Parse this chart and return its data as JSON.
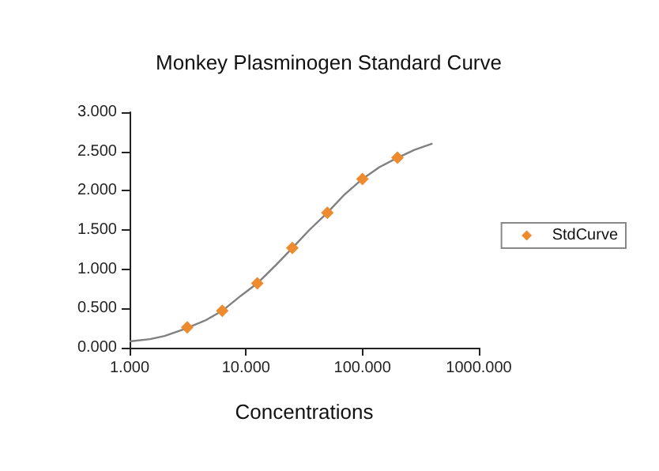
{
  "chart_data": {
    "type": "scatter",
    "title": "Monkey Plasminogen Standard Curve",
    "xlabel": "Concentrations",
    "log": "x",
    "grid": false,
    "legend": "right",
    "marker": "diamond",
    "xlim": [
      1,
      1000
    ],
    "xticks": [
      {
        "value": 1,
        "label": "1.000"
      },
      {
        "value": 10,
        "label": "10.000"
      },
      {
        "value": 100,
        "label": "100.000"
      },
      {
        "value": 1000,
        "label": "1000.000"
      }
    ],
    "ylim": [
      0,
      3
    ],
    "yticks": [
      {
        "value": 0,
        "label": "0.000"
      },
      {
        "value": 0.5,
        "label": "0.500"
      },
      {
        "value": 1,
        "label": "1.000"
      },
      {
        "value": 1.5,
        "label": "1.500"
      },
      {
        "value": 2,
        "label": "2.000"
      },
      {
        "value": 2.5,
        "label": "2.500"
      },
      {
        "value": 3,
        "label": "3.000"
      }
    ],
    "series": [
      {
        "type": "line",
        "marker": "none",
        "color": "#808080",
        "x": [
          1,
          1.5,
          2,
          3,
          4.5,
          6.25,
          9,
          12.5,
          18,
          25,
          35,
          50,
          70,
          100,
          140,
          200,
          280,
          400
        ],
        "values": [
          0.08,
          0.11,
          0.15,
          0.24,
          0.35,
          0.47,
          0.66,
          0.82,
          1.05,
          1.27,
          1.5,
          1.72,
          1.95,
          2.15,
          2.3,
          2.42,
          2.52,
          2.6
        ]
      },
      {
        "name": "StdCurve",
        "color": "#ed8b2e",
        "x": [
          3.125,
          6.25,
          12.5,
          25,
          50,
          100,
          200
        ],
        "values": [
          0.26,
          0.47,
          0.82,
          1.27,
          1.72,
          2.15,
          2.42
        ]
      }
    ]
  }
}
